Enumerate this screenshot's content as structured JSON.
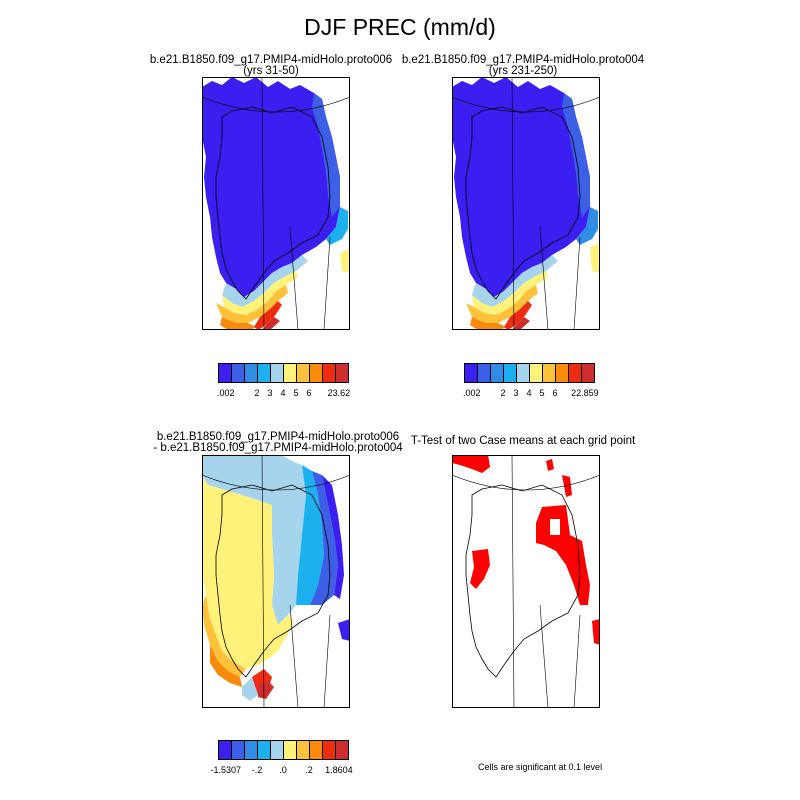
{
  "figure": {
    "title": "DJF PREC (mm/d)"
  },
  "panels": [
    {
      "title_line1": "b.e21.B1850.f09_g17.PMIP4-midHolo.proto006",
      "title_line2": "(yrs 31-50)",
      "colorbar": {
        "colors": [
          "#3a1ff0",
          "#3c5fe6",
          "#2f8de8",
          "#1cb0ee",
          "#a6d4ec",
          "#fef27a",
          "#fec23a",
          "#f98a0c",
          "#ee2d10",
          "#cd2d2d"
        ],
        "labels": [
          ".002",
          "2",
          "3",
          "4",
          "5",
          "6",
          "23.62"
        ]
      }
    },
    {
      "title_line1": "b.e21.B1850.f09_g17.PMIP4-midHolo.proto004",
      "title_line2": "(yrs 231-250)",
      "colorbar": {
        "colors": [
          "#3a1ff0",
          "#3c5fe6",
          "#2f8de8",
          "#1cb0ee",
          "#a6d4ec",
          "#fef27a",
          "#fec23a",
          "#f98a0c",
          "#ee2d10",
          "#cd2d2d"
        ],
        "labels": [
          ".002",
          "2",
          "3",
          "4",
          "5",
          "6",
          "22.859"
        ]
      }
    },
    {
      "title_line1": "b.e21.B1850.f09_g17.PMIP4-midHolo.proto006",
      "title_line2": "- b.e21.B1850.f09_g17.PMIP4-midHolo.proto004",
      "colorbar": {
        "colors": [
          "#3a1ff0",
          "#3c5fe6",
          "#2f8de8",
          "#1cb0ee",
          "#a6d4ec",
          "#fef27a",
          "#fec23a",
          "#f98a0c",
          "#ee2d10",
          "#cd2d2d"
        ],
        "labels": [
          "-1.5307",
          "-.2",
          ".0",
          ".2",
          "1.8604"
        ]
      }
    },
    {
      "title_line1": "T-Test of two Case means at each grid point",
      "note": "Cells are significant at 0.1 level",
      "significant_color": "#ff0000"
    }
  ],
  "chart_data": [
    {
      "type": "heatmap",
      "title": "b.e21.B1850.f09_g17.PMIP4-midHolo.proto006 (yrs 31-50)",
      "variable": "DJF PREC (mm/d)",
      "region": "Greenland",
      "levels": [
        0.002,
        2,
        3,
        4,
        5,
        6,
        23.62
      ],
      "pattern": "interior and north low (<2 mm/d), increasing toward south/southeast coast, max ~23.62 at southern tip"
    },
    {
      "type": "heatmap",
      "title": "b.e21.B1850.f09_g17.PMIP4-midHolo.proto004 (yrs 231-250)",
      "variable": "DJF PREC (mm/d)",
      "region": "Greenland",
      "levels": [
        0.002,
        2,
        3,
        4,
        5,
        6,
        22.859
      ],
      "pattern": "interior and north low (<2 mm/d), increasing toward south/southeast coast, max ~22.859 at southern tip"
    },
    {
      "type": "heatmap",
      "title": "b.e21.B1850.f09_g17.PMIP4-midHolo.proto006 - b.e21.B1850.f09_g17.PMIP4-midHolo.proto004",
      "variable": "DJF PREC difference (mm/d)",
      "region": "Greenland",
      "levels": [
        -1.5307,
        -0.2,
        0.0,
        0.2,
        1.8604
      ],
      "pattern": "positive over west and south, negative along east coast"
    },
    {
      "type": "heatmap",
      "title": "T-Test of two Case means at each grid point",
      "region": "Greenland",
      "significance_level": 0.1,
      "pattern": "significant cells in northeast, east coast and a small west-central patch"
    }
  ]
}
